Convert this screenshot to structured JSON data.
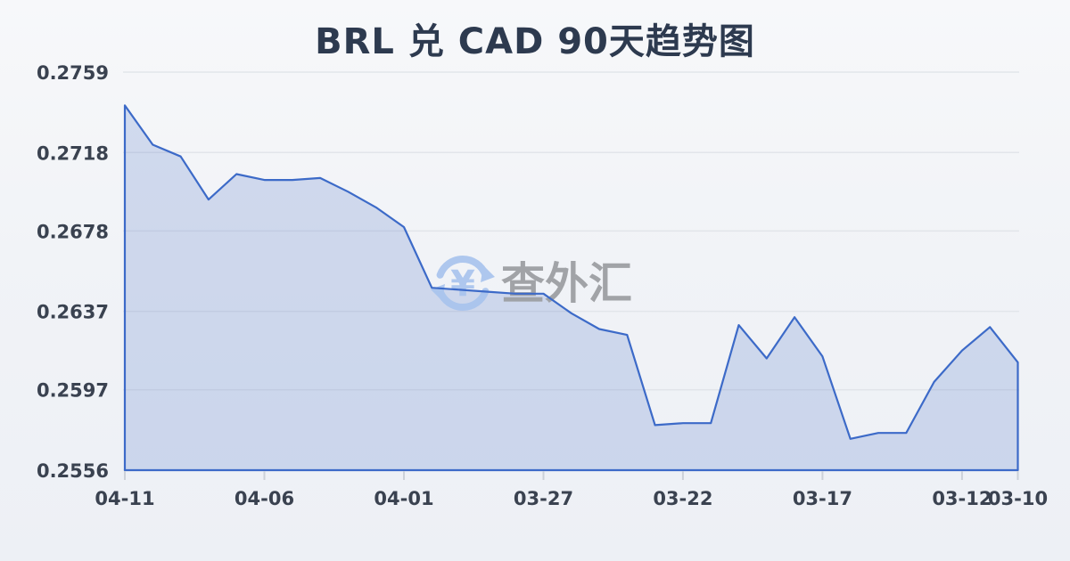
{
  "page": {
    "background": "#f0f2f6"
  },
  "header": {
    "title": "BRL 兑 CAD 90天趋势图",
    "title_color": "#2d3a4f"
  },
  "watermark": {
    "text": "查外汇",
    "icon": "currency-exchange-refresh-icon",
    "icon_symbol": "¥",
    "icon_color": "#a9c4ee",
    "text_color": "#9c9ea2"
  },
  "chart_data": {
    "type": "area",
    "title": "BRL 兑 CAD 90天趋势图",
    "x": [
      "04-11",
      "04-10",
      "04-09",
      "04-08",
      "04-07",
      "04-06",
      "04-05",
      "04-04",
      "04-03",
      "04-02",
      "04-01",
      "03-31",
      "03-30",
      "03-29",
      "03-28",
      "03-27",
      "03-26",
      "03-25",
      "03-24",
      "03-23",
      "03-22",
      "03-21",
      "03-20",
      "03-19",
      "03-18",
      "03-17",
      "03-16",
      "03-15",
      "03-14",
      "03-13",
      "03-12",
      "03-11",
      "03-10"
    ],
    "series": [
      {
        "name": "BRL兑CAD",
        "values": [
          0.2742,
          0.2722,
          0.2716,
          0.2694,
          0.2707,
          0.2704,
          0.2704,
          0.2705,
          0.2698,
          0.269,
          0.268,
          0.2649,
          0.2648,
          0.2647,
          0.2646,
          0.2646,
          0.2636,
          0.2628,
          0.2625,
          0.2579,
          0.258,
          0.258,
          0.263,
          0.2613,
          0.2634,
          0.2614,
          0.2572,
          0.2575,
          0.2575,
          0.2601,
          0.2617,
          0.2629,
          0.2611
        ]
      }
    ],
    "ylim": [
      0.2556,
      0.2759
    ],
    "y_ticks": [
      0.2759,
      0.2718,
      0.2678,
      0.2637,
      0.2597,
      0.2556
    ],
    "x_tick_labels": [
      "04-11",
      "04-06",
      "04-01",
      "03-27",
      "03-22",
      "03-17",
      "03-12",
      "03-10"
    ],
    "x_tick_indices": [
      0,
      5,
      10,
      15,
      20,
      25,
      30,
      32
    ],
    "x_order": "date-descending",
    "grid": true,
    "legend": "none",
    "line_color": "#3c6ac8",
    "fill_color": "rgba(82,118,200,0.22)",
    "gridline_color": "#e2e5ea",
    "axis_tick_color": "#ccd1d9",
    "tick_label_color": "#3a4250"
  }
}
